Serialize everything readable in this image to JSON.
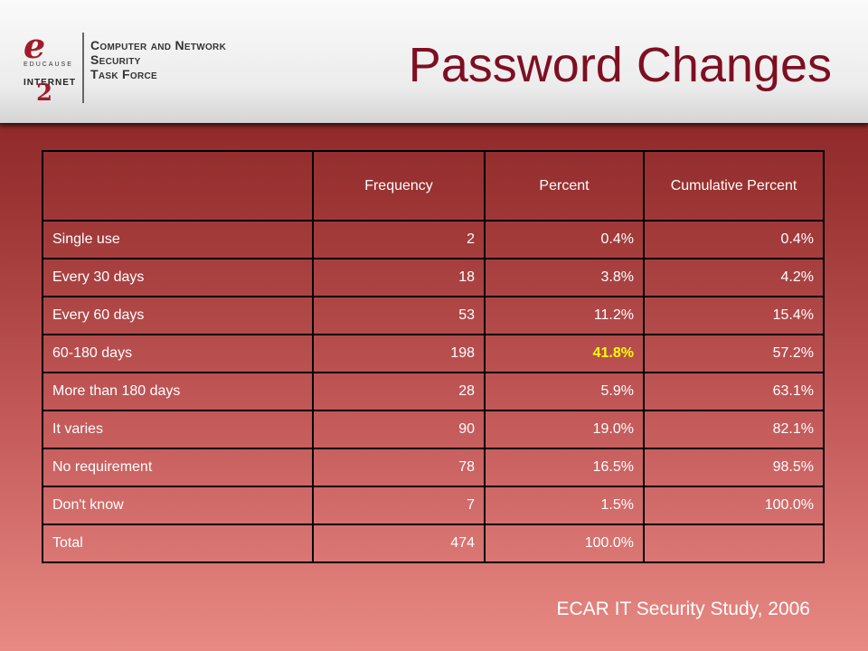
{
  "logo": {
    "mark_letter": "e",
    "educause": "EDUCAUSE",
    "internet": "INTERNET",
    "mark_number": "2",
    "line1": "Computer and Network",
    "line2": "Security",
    "line3": "Task Force"
  },
  "title": "Password Changes",
  "table": {
    "headers": [
      "",
      "Frequency",
      "Percent",
      "Cumulative Percent"
    ],
    "rows": [
      {
        "label": "Single use",
        "frequency": "2",
        "percent": "0.4%",
        "cumulative": "0.4%"
      },
      {
        "label": "Every 30 days",
        "frequency": "18",
        "percent": "3.8%",
        "cumulative": "4.2%"
      },
      {
        "label": "Every 60 days",
        "frequency": "53",
        "percent": "11.2%",
        "cumulative": "15.4%"
      },
      {
        "label": "60-180 days",
        "frequency": "198",
        "percent": "41.8%",
        "cumulative": "57.2%"
      },
      {
        "label": "More than 180 days",
        "frequency": "28",
        "percent": "5.9%",
        "cumulative": "63.1%"
      },
      {
        "label": "It varies",
        "frequency": "90",
        "percent": "19.0%",
        "cumulative": "82.1%"
      },
      {
        "label": "No requirement",
        "frequency": "78",
        "percent": "16.5%",
        "cumulative": "98.5%"
      },
      {
        "label": "Don't know",
        "frequency": "7",
        "percent": "1.5%",
        "cumulative": "100.0%"
      },
      {
        "label": "Total",
        "frequency": "474",
        "percent": "100.0%",
        "cumulative": ""
      }
    ],
    "highlight_color": "#ffff00"
  },
  "source": "ECAR IT Security Study, 2006",
  "colors": {
    "title": "#7e0f22",
    "background_top": "#7e1b1b",
    "background_bottom": "#e88a84",
    "text": "#ffffff"
  }
}
